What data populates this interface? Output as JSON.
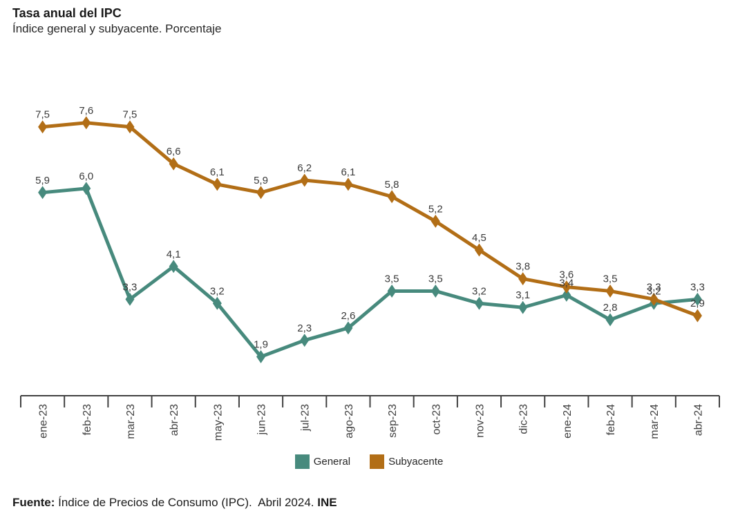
{
  "chart_data": {
    "type": "line",
    "title": "Tasa anual del IPC",
    "subtitle": "Índice general y subyacente. Porcentaje",
    "categories": [
      "ene-23",
      "feb-23",
      "mar-23",
      "abr-23",
      "may-23",
      "jun-23",
      "jul-23",
      "ago-23",
      "sep-23",
      "oct-23",
      "nov-23",
      "dic-23",
      "ene-24",
      "feb-24",
      "mar-24",
      "abr-24"
    ],
    "series": [
      {
        "name": "General",
        "color": "#478A7D",
        "values": [
          5.9,
          6.0,
          3.3,
          4.1,
          3.2,
          1.9,
          2.3,
          2.6,
          3.5,
          3.5,
          3.2,
          3.1,
          3.4,
          2.8,
          3.2,
          3.3
        ]
      },
      {
        "name": "Subyacente",
        "color": "#B26E16",
        "values": [
          7.5,
          7.6,
          7.5,
          6.6,
          6.1,
          5.9,
          6.2,
          6.1,
          5.8,
          5.2,
          4.5,
          3.8,
          3.6,
          3.5,
          3.3,
          2.9
        ]
      }
    ],
    "ylim": [
      0.95,
      8.0
    ],
    "xlabel": "",
    "ylabel": "",
    "grid": false,
    "marker": "diamond",
    "data_labels": true,
    "decimal_separator": ",",
    "legend_position": "bottom",
    "label_color": "#3a3a3a",
    "axis_color": "#404040"
  },
  "footer": {
    "prefix": "Fuente:",
    "body": " Índice de Precios de Consumo (IPC).  Abril 2024. ",
    "suffix": "INE"
  }
}
